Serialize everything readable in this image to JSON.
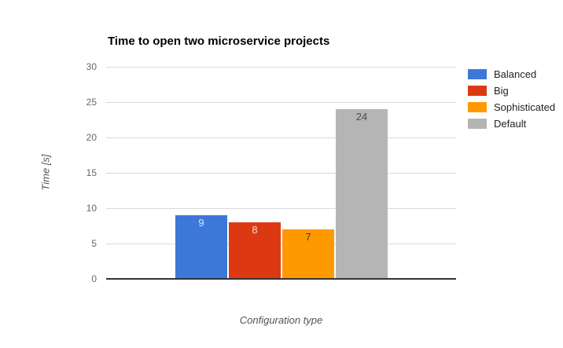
{
  "chart_data": {
    "type": "bar",
    "title": "Time to open two microservice projects",
    "xlabel": "Configuration type",
    "ylabel": "Time [s]",
    "ylim": [
      0,
      30
    ],
    "yticks": [
      0,
      5,
      10,
      15,
      20,
      25,
      30
    ],
    "grid": true,
    "legend_position": "right",
    "categories": [
      ""
    ],
    "series": [
      {
        "name": "Balanced",
        "values": [
          9
        ],
        "color": "#3c78d8",
        "value_label_color": "#dde6f5"
      },
      {
        "name": "Big",
        "values": [
          8
        ],
        "color": "#dc3912",
        "value_label_color": "#f5ded8"
      },
      {
        "name": "Sophisticated",
        "values": [
          7
        ],
        "color": "#ff9900",
        "value_label_color": "#404040"
      },
      {
        "name": "Default",
        "values": [
          24
        ],
        "color": "#b5b5b5",
        "value_label_color": "#4a4a4a"
      }
    ]
  },
  "colors": {
    "background": "#ffffff",
    "gridline": "#d9d9d9",
    "axis_line": "#333333",
    "tick_label": "#666666",
    "axis_title": "#545454",
    "title": "#000000",
    "legend_label": "#222222"
  }
}
